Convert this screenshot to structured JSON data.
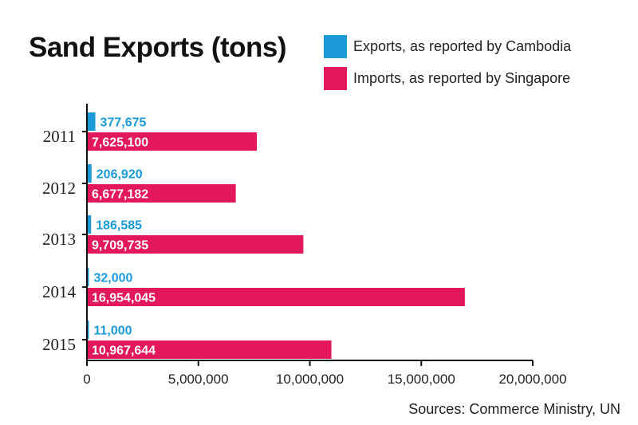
{
  "colors": {
    "exports": "#1a9ad7",
    "imports": "#e3175b",
    "axis": "#111111",
    "text": "#222222"
  },
  "chart_data": {
    "type": "bar",
    "orientation": "horizontal",
    "title": "Sand Exports (tons)",
    "categories": [
      "2011",
      "2012",
      "2013",
      "2014",
      "2015"
    ],
    "series": [
      {
        "name": "Exports, as reported by Cambodia",
        "values": [
          377675,
          206920,
          186585,
          32000,
          11000
        ],
        "labels": [
          "377,675",
          "206,920",
          "186,585",
          "32,000",
          "11,000"
        ]
      },
      {
        "name": "Imports, as reported by Singapore",
        "values": [
          7625100,
          6677182,
          9709735,
          16954045,
          10967644
        ],
        "labels": [
          "7,625,100",
          "6,677,182",
          "9,709,735",
          "16,954,045",
          "10,967,644"
        ]
      }
    ],
    "xlim": [
      0,
      20000000
    ],
    "xticks": [
      0,
      5000000,
      10000000,
      15000000,
      20000000
    ],
    "xtick_labels": [
      "0",
      "5,000,000",
      "10,000,000",
      "15,000,000",
      "20,000,000"
    ],
    "grid": false,
    "legend_position": "top-right"
  },
  "source": "Sources: Commerce Ministry, UN"
}
